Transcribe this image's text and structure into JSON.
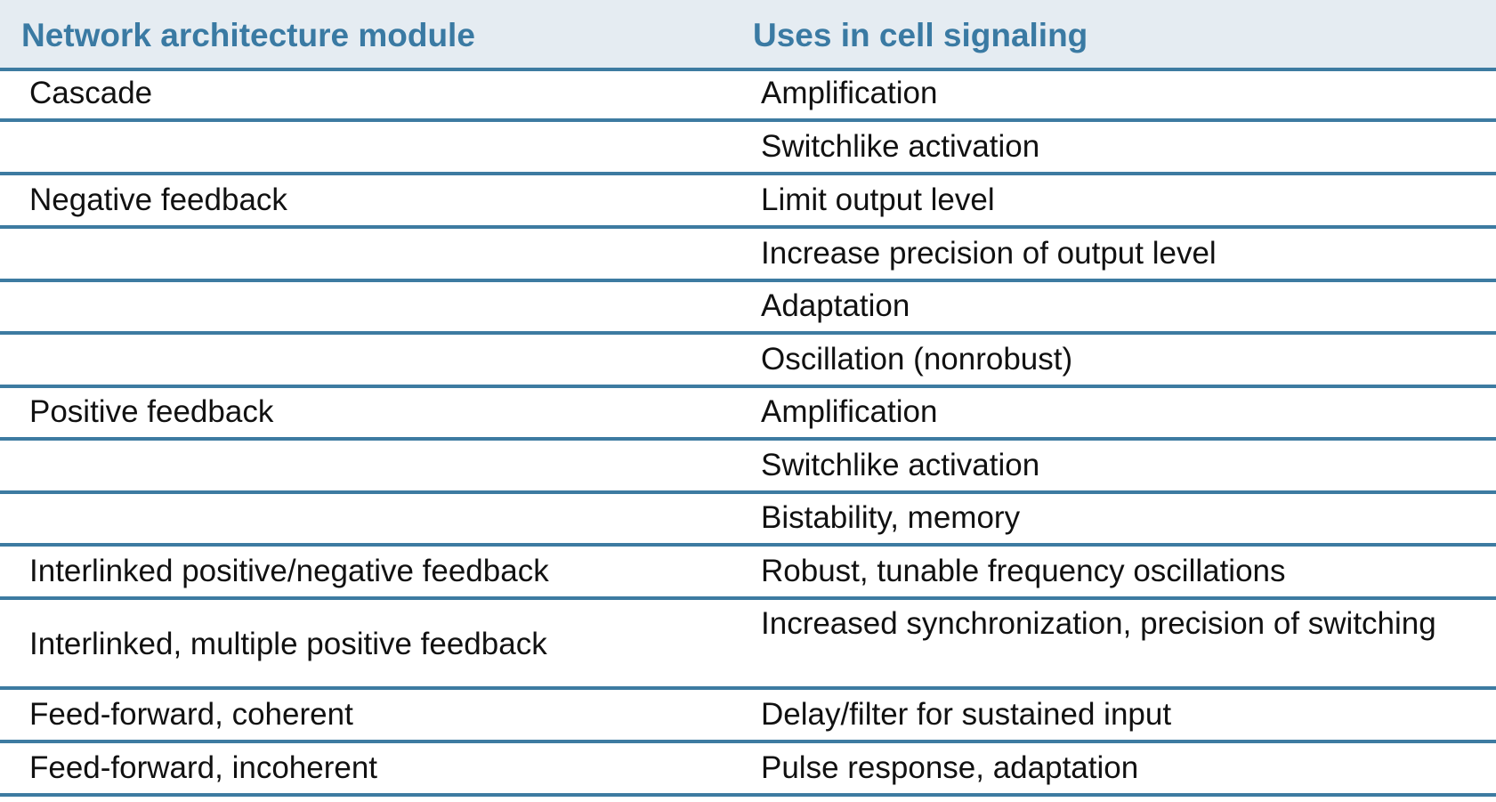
{
  "table": {
    "headers": [
      "Network architecture module",
      "Uses in cell signaling"
    ],
    "rows": [
      {
        "module": "Cascade",
        "use": "Amplification"
      },
      {
        "module": "",
        "use": "Switchlike activation"
      },
      {
        "module": "Negative feedback",
        "use": "Limit output level"
      },
      {
        "module": "",
        "use": "Increase precision of output level"
      },
      {
        "module": "",
        "use": "Adaptation"
      },
      {
        "module": "",
        "use": "Oscillation (nonrobust)"
      },
      {
        "module": "Positive feedback",
        "use": "Amplification"
      },
      {
        "module": "",
        "use": "Switchlike activation"
      },
      {
        "module": "",
        "use": "Bistability, memory"
      },
      {
        "module": "Interlinked positive/negative feedback",
        "use": "Robust, tunable frequency oscillations"
      },
      {
        "module": "Interlinked, multiple positive feedback",
        "use": "Increased synchronization, precision of switching"
      },
      {
        "module": "Feed-forward, coherent",
        "use": "Delay/filter for sustained input"
      },
      {
        "module": "Feed-forward, incoherent",
        "use": "Pulse response, adaptation"
      }
    ]
  },
  "colors": {
    "header_text": "#3a7aa3",
    "header_background": "#e5ecf2",
    "rule": "#3d7ba1"
  }
}
